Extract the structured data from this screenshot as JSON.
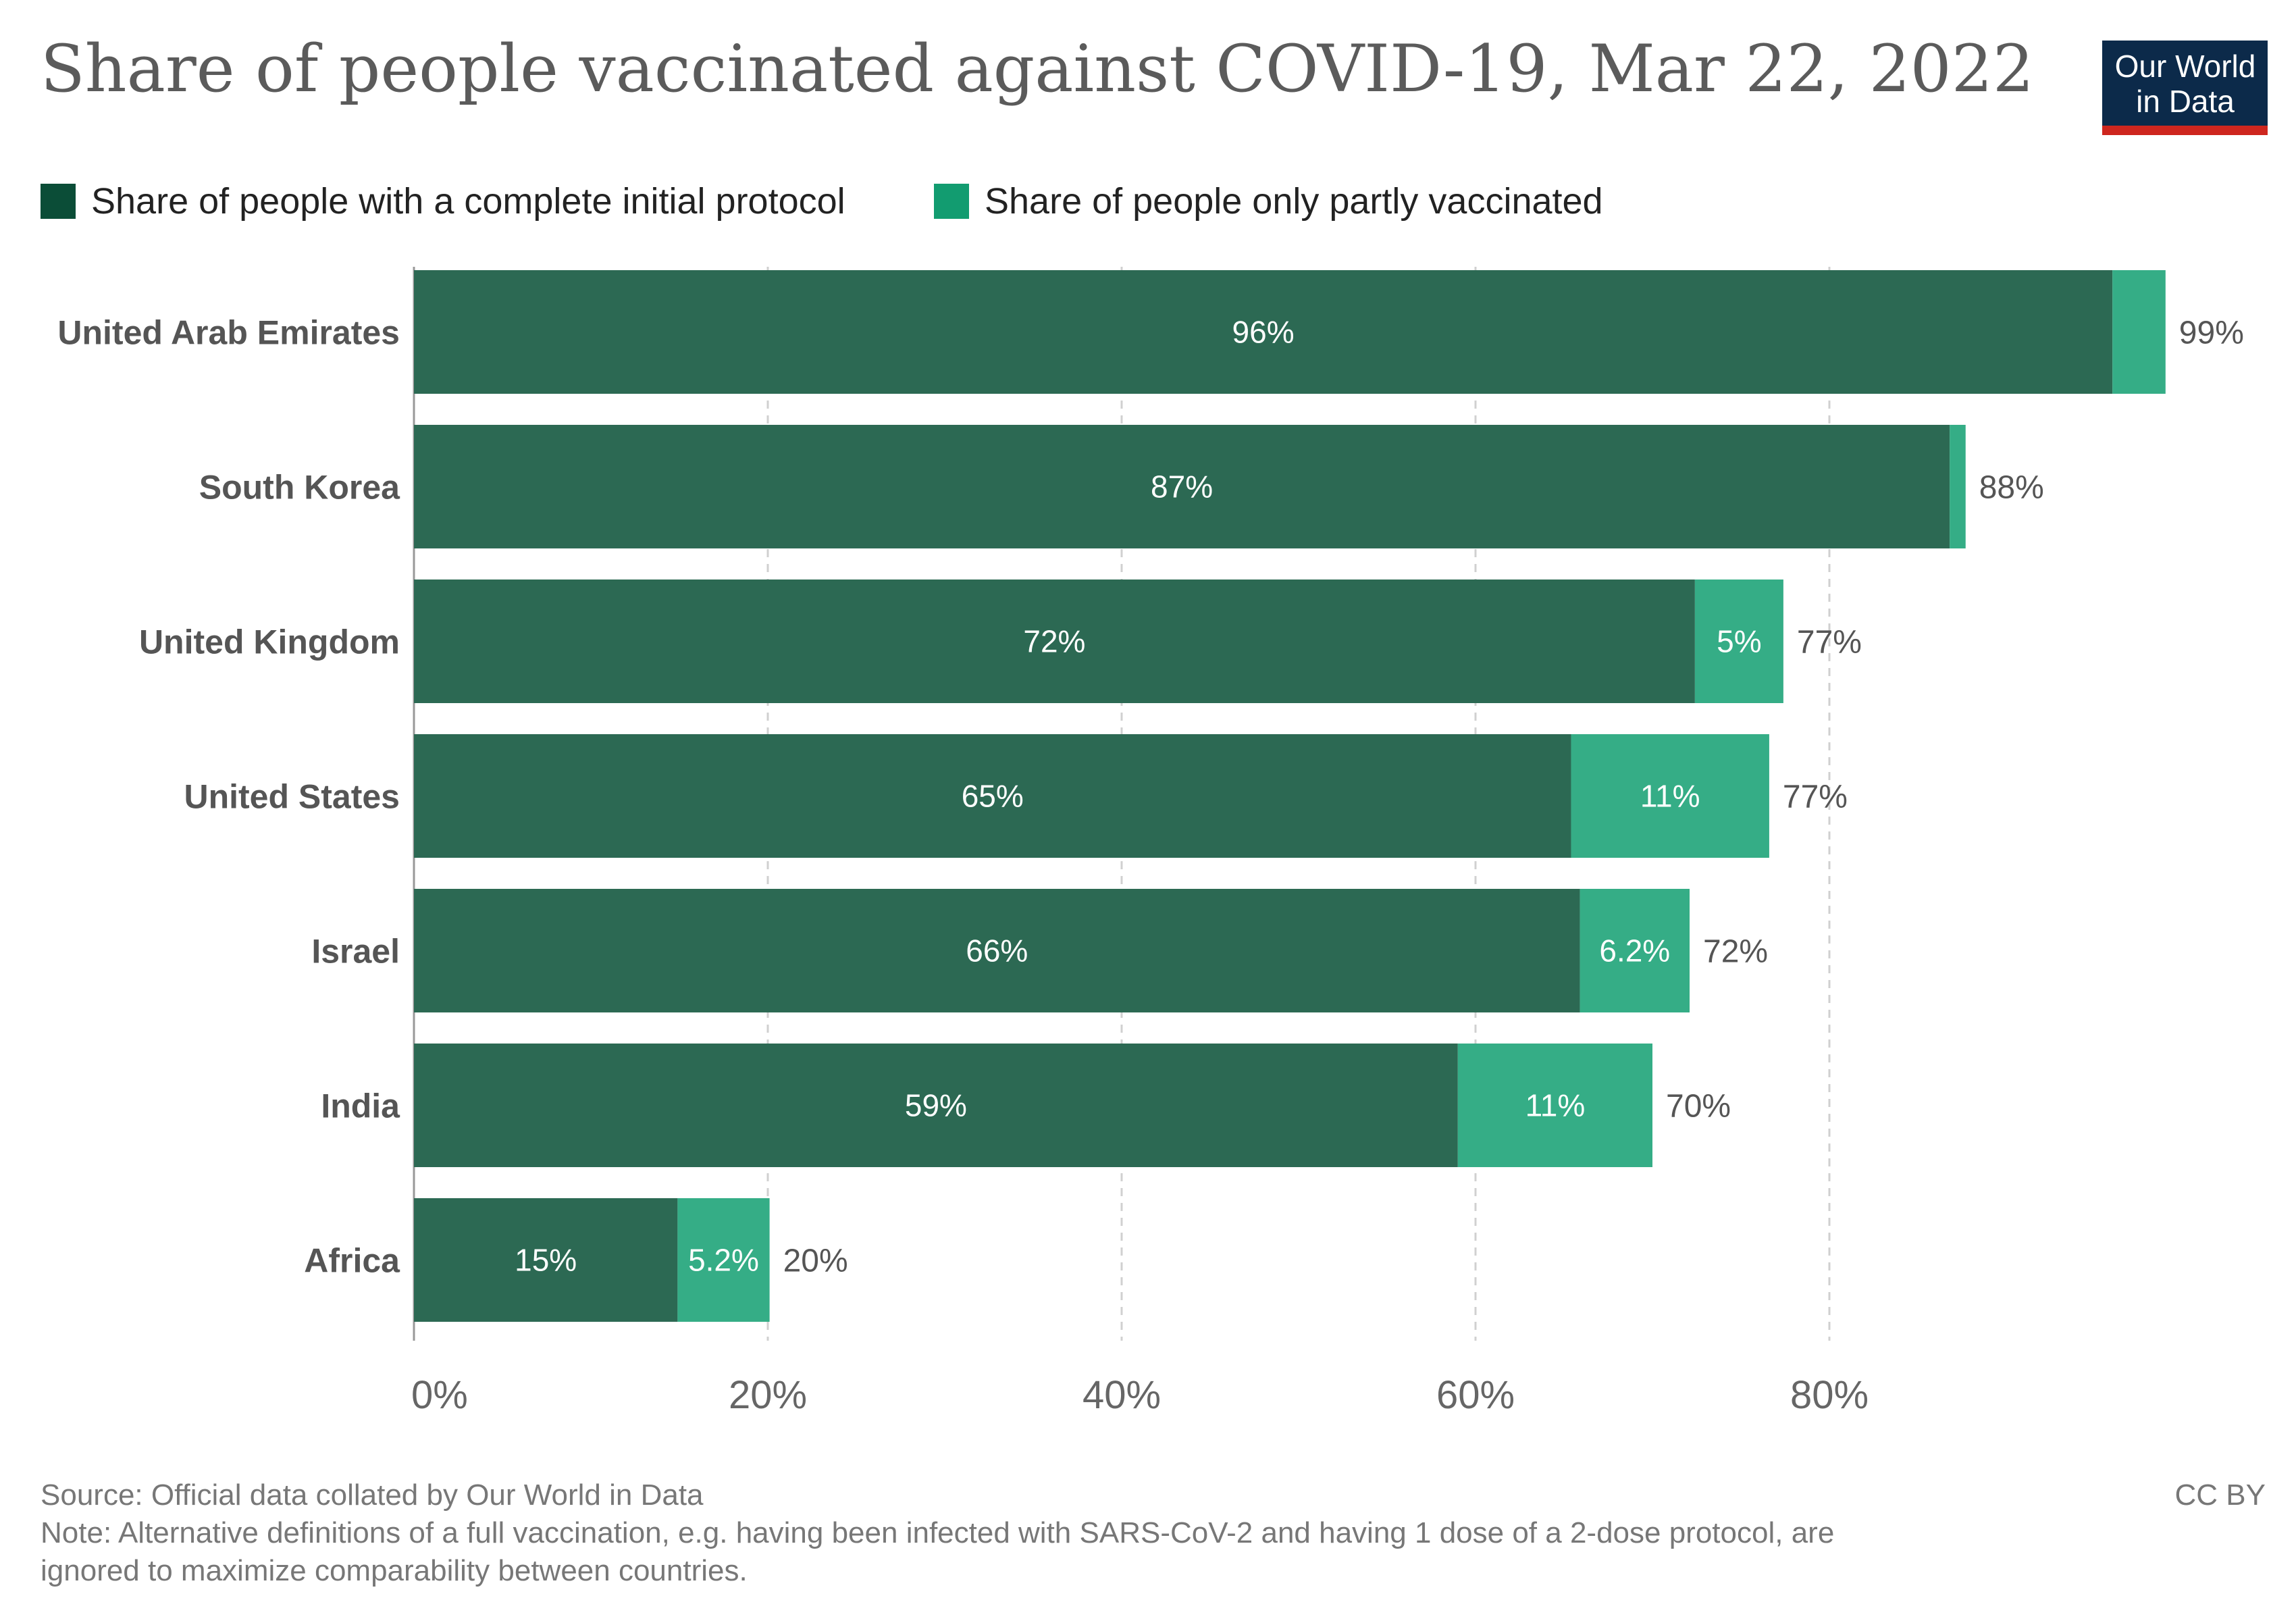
{
  "title": "Share of people vaccinated against COVID-19, Mar 22, 2022",
  "logo": {
    "line1": "Our World",
    "line2": "in Data",
    "bg_color": "#0c2a4a",
    "accent_color": "#ce261e"
  },
  "colors": {
    "complete": "#2c6953",
    "partial": "#35ad86",
    "legend_complete": "#0b4d37",
    "legend_partial": "#129c70"
  },
  "footer": {
    "source": "Source: Official data collated by Our World in Data",
    "license": "CC BY",
    "note_line1": "Note: Alternative definitions of a full vaccination, e.g. having been infected with SARS-CoV-2 and having 1 dose of a 2-dose protocol, are",
    "note_line2": "ignored to maximize comparability between countries."
  },
  "chart_data": {
    "type": "bar",
    "orientation": "horizontal",
    "stacked": true,
    "title": "Share of people vaccinated against COVID-19, Mar 22, 2022",
    "categories": [
      "United Arab Emirates",
      "South Korea",
      "United Kingdom",
      "United States",
      "Israel",
      "India",
      "Africa"
    ],
    "series": [
      {
        "name": "Share of people with a complete initial protocol",
        "values": [
          96,
          86.8,
          72.4,
          65.4,
          65.9,
          59,
          14.9
        ],
        "labels": [
          "96%",
          "87%",
          "72%",
          "65%",
          "66%",
          "59%",
          "15%"
        ]
      },
      {
        "name": "Share of people only partly vaccinated",
        "values": [
          3,
          0.9,
          5,
          11.2,
          6.2,
          11,
          5.2
        ],
        "labels": [
          "",
          "",
          "5%",
          "11%",
          "6.2%",
          "11%",
          "5.2%"
        ]
      }
    ],
    "totals": [
      "99%",
      "88%",
      "77%",
      "77%",
      "72%",
      "70%",
      "20%"
    ],
    "xlim": [
      0,
      100
    ],
    "xticks": [
      0,
      20,
      40,
      60,
      80
    ],
    "xtick_labels": [
      "0%",
      "20%",
      "40%",
      "60%",
      "80%"
    ],
    "grid": "vertical dashed",
    "legend": "top-left"
  }
}
